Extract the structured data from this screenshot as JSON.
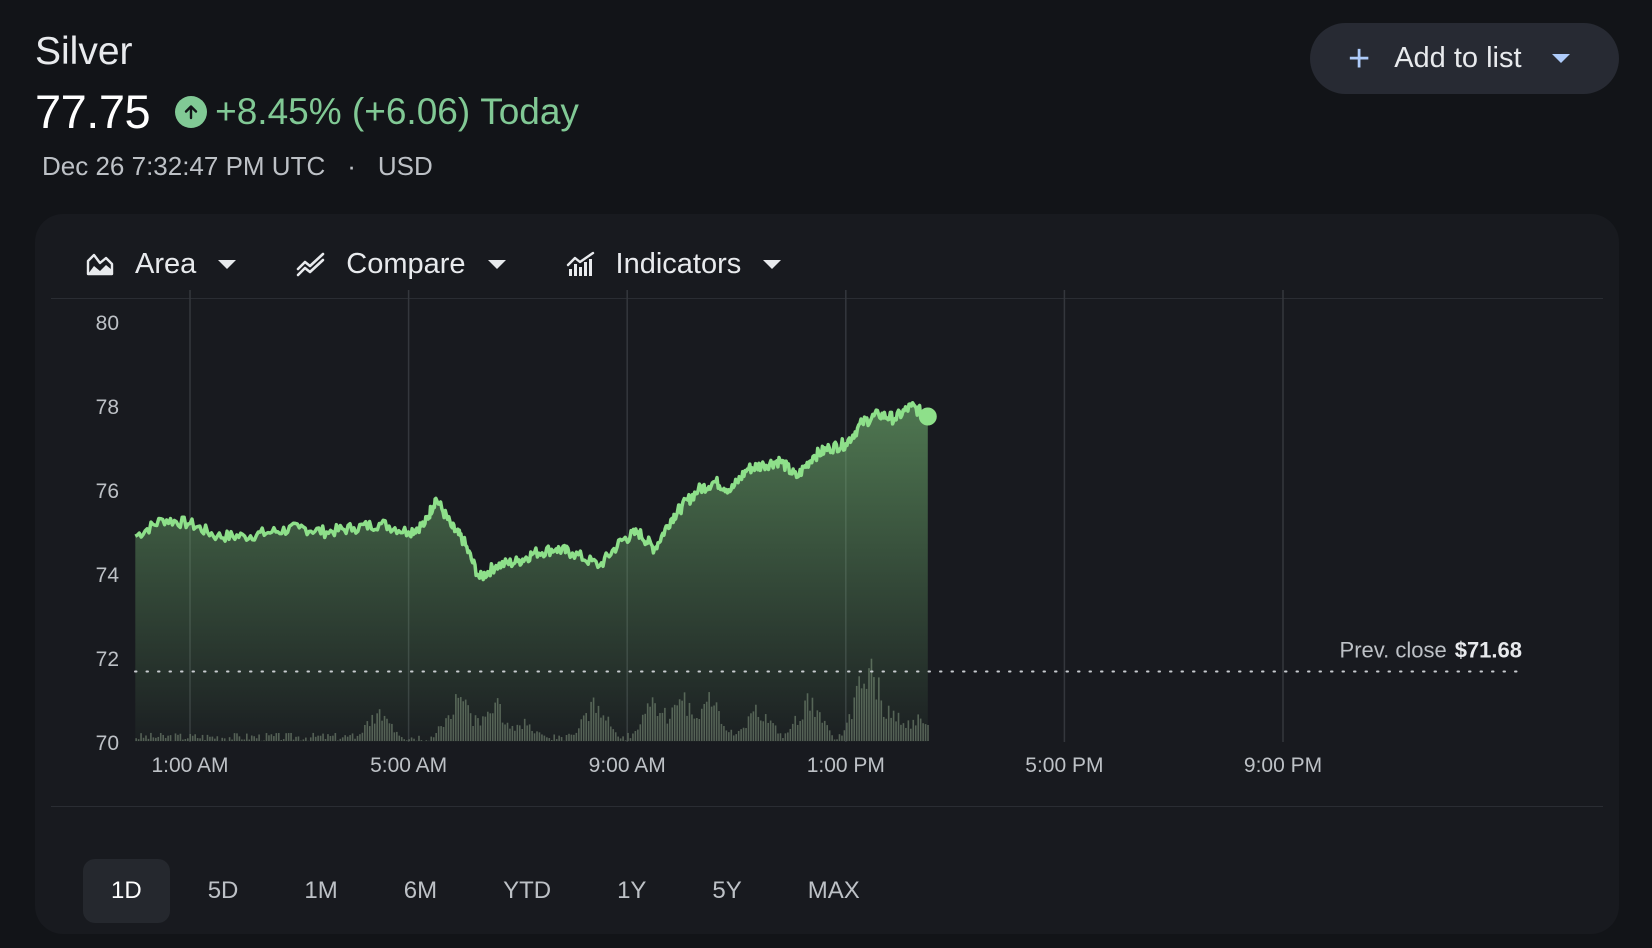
{
  "header": {
    "title": "Silver",
    "price": "77.75",
    "change": "+8.45% (+6.06)",
    "period": "Today",
    "timestamp": "Dec 26 7:32:47 PM UTC",
    "separator": "·",
    "currency": "USD"
  },
  "add_button": {
    "label": "Add to list",
    "icon": "plus-icon"
  },
  "toolbar": {
    "area_label": "Area",
    "compare_label": "Compare",
    "indicators_label": "Indicators"
  },
  "colors": {
    "positive": "#81c995",
    "line": "#8ee08a",
    "background": "#121418",
    "card": "#181a1f"
  },
  "chart_data": {
    "type": "area",
    "y_ticks": [
      "80",
      "78",
      "76",
      "74",
      "72",
      "70"
    ],
    "ylim": [
      70,
      80
    ],
    "x_ticks": [
      "1:00 AM",
      "5:00 AM",
      "9:00 AM",
      "1:00 PM",
      "5:00 PM",
      "9:00 PM"
    ],
    "x_hours": [
      1,
      5,
      9,
      13,
      17,
      21
    ],
    "xlim_hours": [
      0,
      24
    ],
    "prev_close_label": "Prev. close",
    "prev_close_value": "$71.68",
    "prev_close": 71.68,
    "series": [
      {
        "x_hours": [
          0.0,
          0.5,
          1.0,
          1.5,
          2.0,
          2.5,
          3.0,
          3.5,
          4.0,
          4.5,
          5.0,
          5.3,
          5.5,
          5.8,
          6.0,
          6.3,
          6.6,
          7.0,
          7.3,
          7.7,
          8.0,
          8.5,
          8.9,
          9.2,
          9.5,
          9.8,
          10.0,
          10.3,
          10.6,
          10.9,
          11.2,
          11.5,
          11.8,
          12.1,
          12.4,
          12.7,
          13.0,
          13.3,
          13.6,
          13.9,
          14.2,
          14.5
        ],
        "values": [
          74.9,
          75.3,
          75.2,
          74.9,
          74.9,
          75.0,
          75.1,
          75.0,
          75.1,
          75.2,
          75.0,
          75.2,
          75.8,
          75.1,
          74.8,
          73.9,
          74.2,
          74.3,
          74.5,
          74.6,
          74.5,
          74.2,
          74.8,
          75.0,
          74.6,
          75.3,
          75.6,
          76.0,
          76.2,
          76.0,
          76.5,
          76.6,
          76.7,
          76.3,
          76.8,
          77.0,
          77.1,
          77.6,
          77.8,
          77.7,
          78.0,
          77.75
        ],
        "volume_peaks": [
          {
            "x_hour": 4.45,
            "rel": 0.35
          },
          {
            "x_hour": 5.9,
            "rel": 0.55
          },
          {
            "x_hour": 6.25,
            "rel": 0.3
          },
          {
            "x_hour": 6.55,
            "rel": 0.5
          },
          {
            "x_hour": 7.1,
            "rel": 0.22
          },
          {
            "x_hour": 8.4,
            "rel": 0.45
          },
          {
            "x_hour": 9.5,
            "rel": 0.5
          },
          {
            "x_hour": 10.0,
            "rel": 0.55
          },
          {
            "x_hour": 10.5,
            "rel": 0.5
          },
          {
            "x_hour": 11.4,
            "rel": 0.4
          },
          {
            "x_hour": 12.3,
            "rel": 0.5
          },
          {
            "x_hour": 13.4,
            "rel": 1.0
          },
          {
            "x_hour": 13.8,
            "rel": 0.4
          },
          {
            "x_hour": 14.3,
            "rel": 0.3
          }
        ]
      }
    ]
  },
  "ranges": [
    "1D",
    "5D",
    "1M",
    "6M",
    "YTD",
    "1Y",
    "5Y",
    "MAX"
  ],
  "active_range": "1D"
}
